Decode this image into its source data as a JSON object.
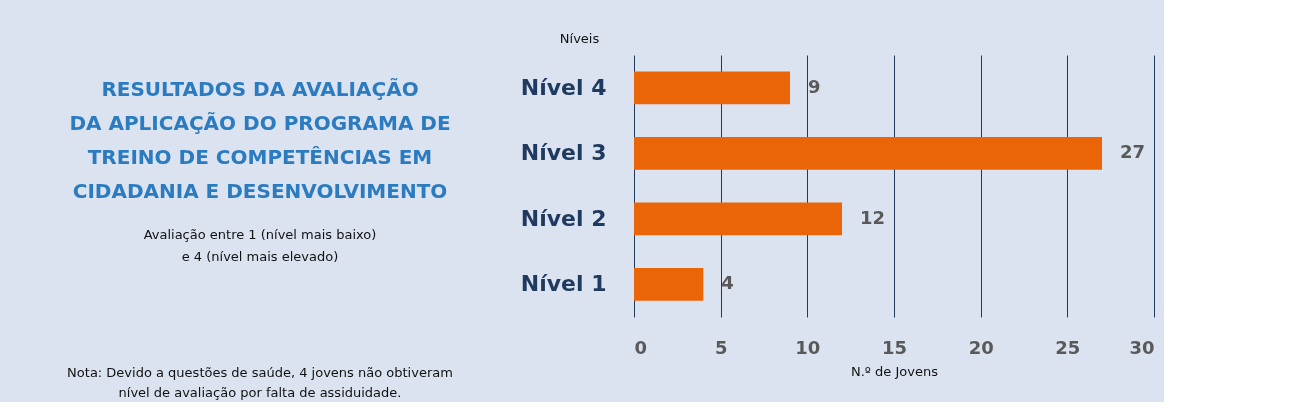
{
  "chart_data": {
    "type": "bar",
    "orientation": "horizontal",
    "title": "RESULTADOS DA AVALIAÇÃO\nDA APLICAÇÃO DO PROGRAMA DE\nTREINO DE COMPETÊNCIAS EM\nCIDADANIA E DESENVOLVIMENTO",
    "subtitle": "Avaliação entre 1 (nível mais baixo)\ne 4 (nível mais elevado)",
    "annotations": [
      "Nota: Devido a questões de saúde, 4 jovens não obtiveram\nnível de avaliação por falta de assiduidade."
    ],
    "categories": [
      "Nível 4",
      "Nível 3",
      "Nível 2",
      "Nível 1"
    ],
    "values": [
      9,
      27,
      12,
      4
    ],
    "color": "#ea6507",
    "xlim": [
      0,
      30
    ],
    "xticks": [
      0,
      5,
      10,
      15,
      20,
      25,
      30
    ],
    "xlabel": "N.º de Jovens",
    "ylabel": "Níveis",
    "grid": "x",
    "data_labels": true
  }
}
